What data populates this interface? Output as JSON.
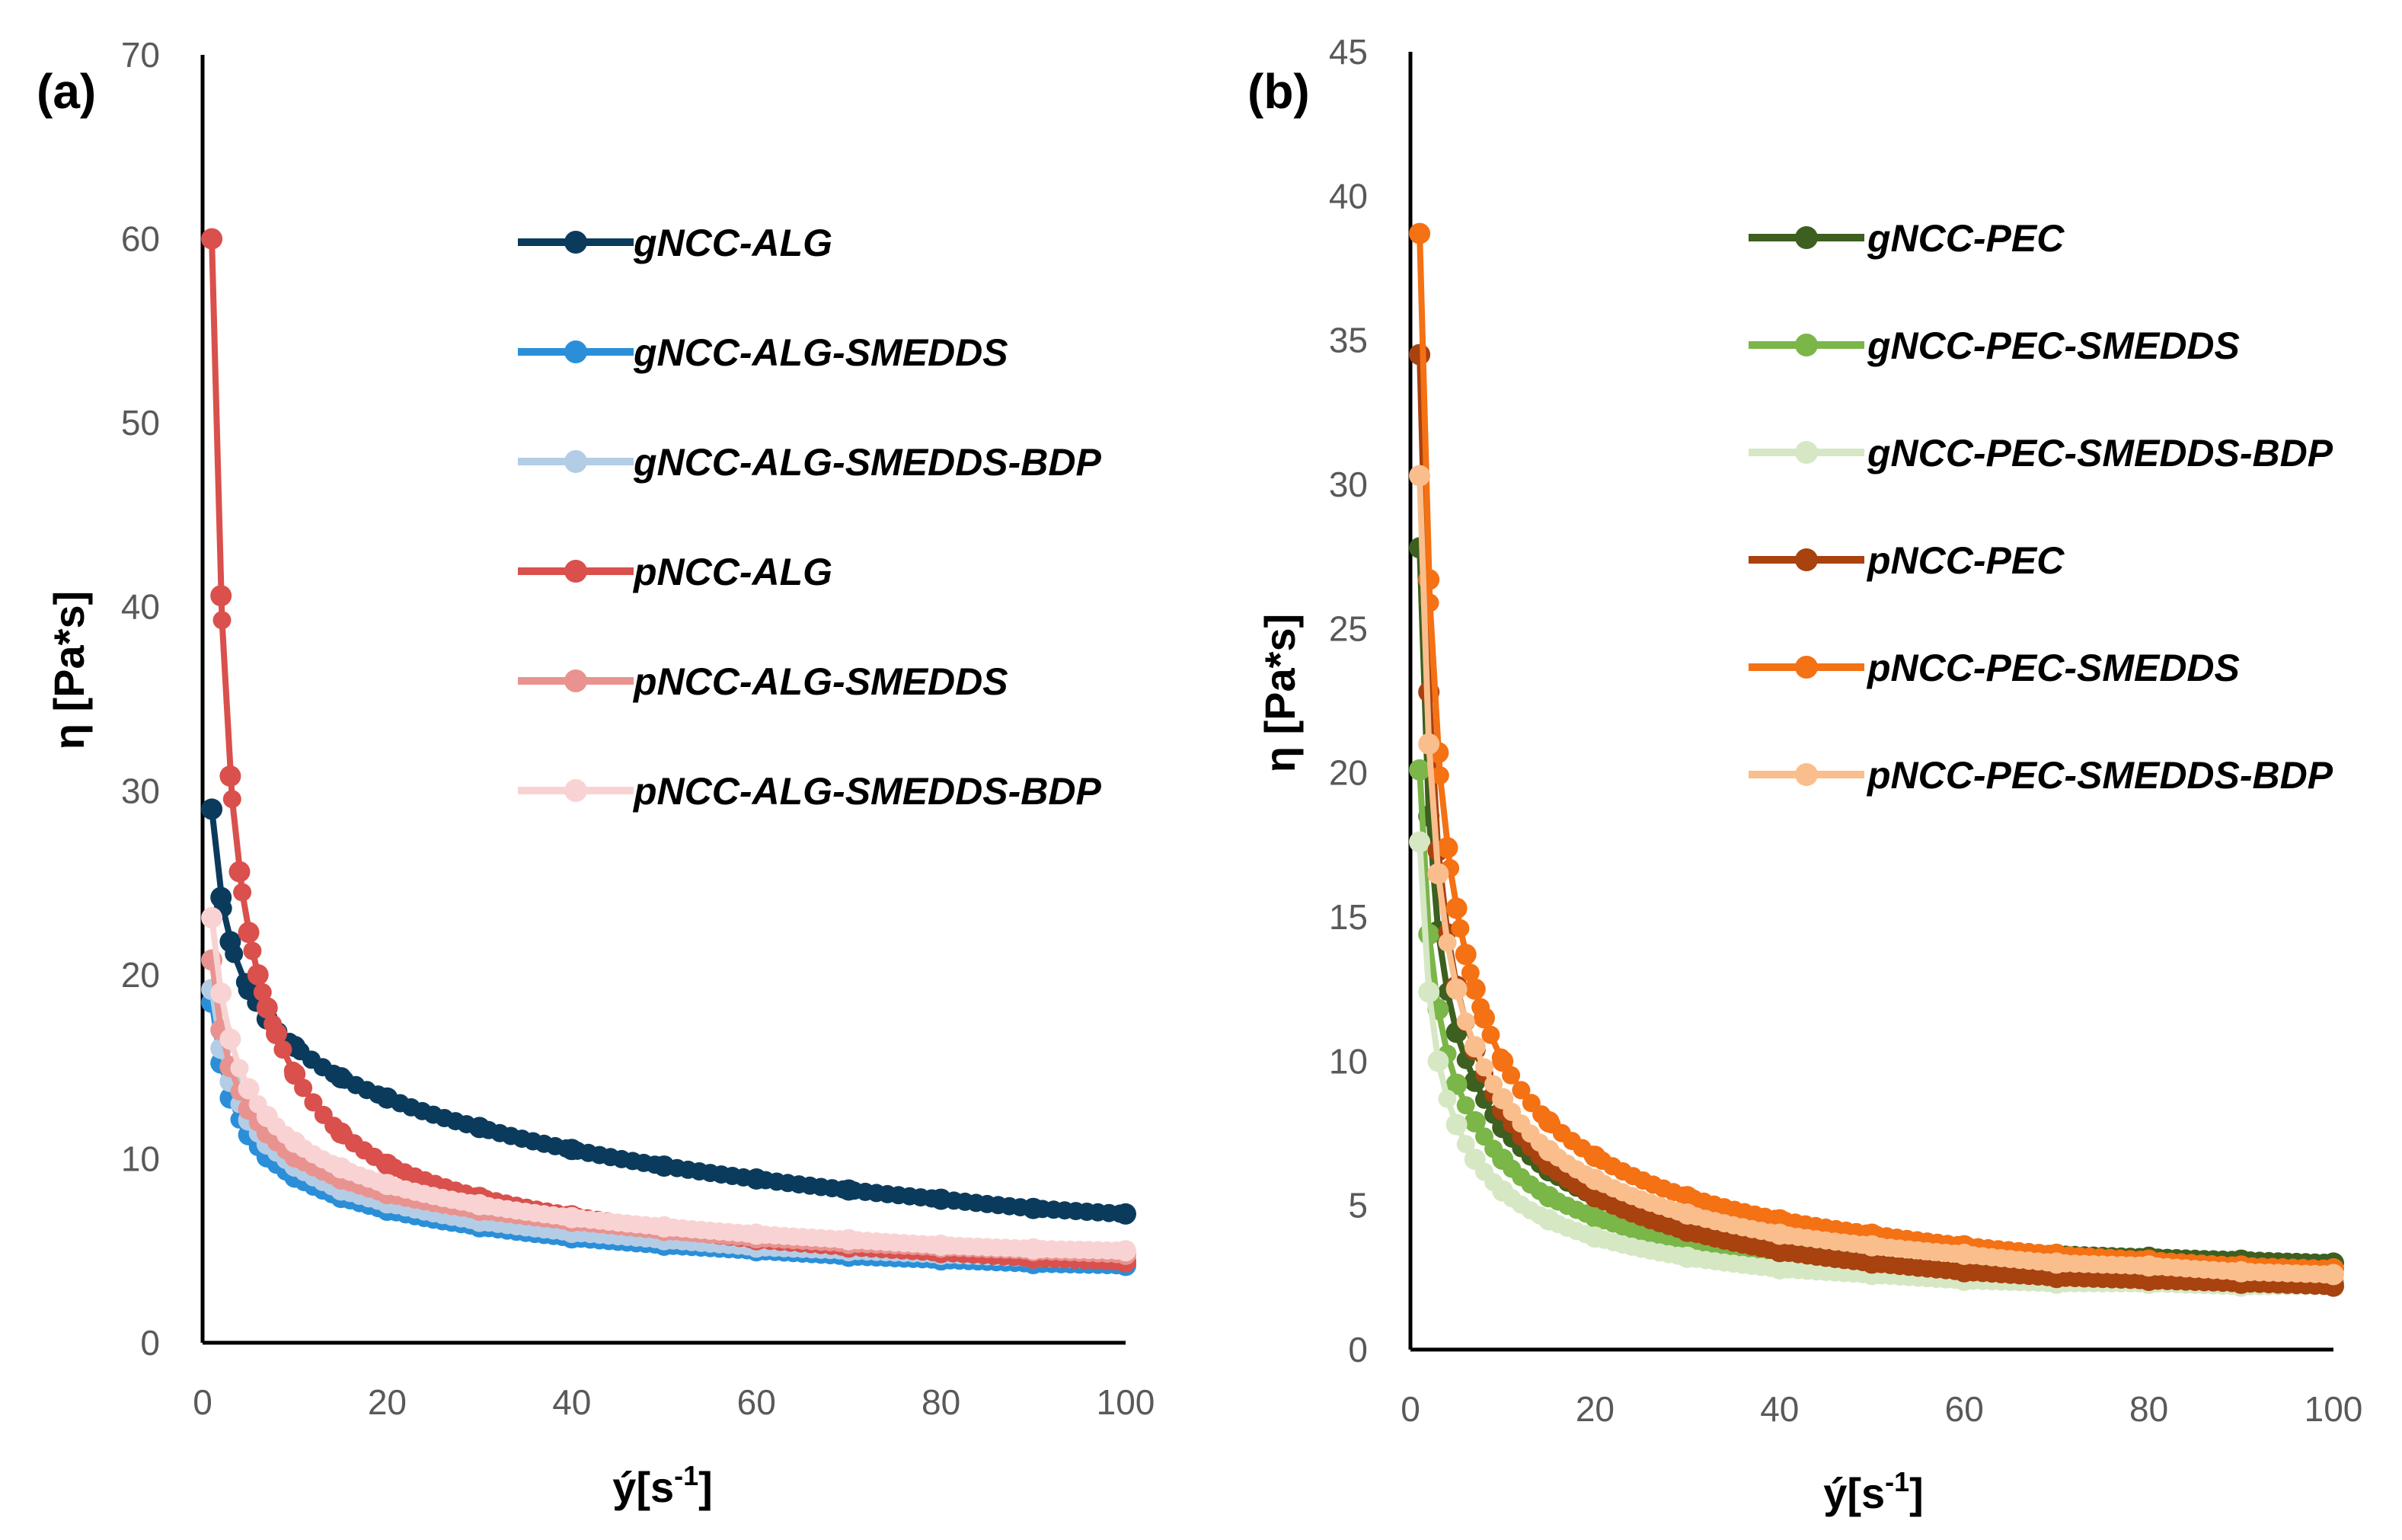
{
  "chart_data": [
    {
      "panel": "(a)",
      "type": "line",
      "xlabel": "ý[s",
      "xlabel_sup": "-1",
      "xlabel_end": "]",
      "ylabel": "η [Pa*s]",
      "xlim": [
        0,
        100
      ],
      "ylim": [
        0,
        70
      ],
      "xticks": [
        "0",
        "20",
        "40",
        "60",
        "80",
        "100"
      ],
      "yticks": [
        "0",
        "10",
        "20",
        "30",
        "40",
        "50",
        "60",
        "70"
      ],
      "grid": false,
      "legend_position": "top-right",
      "series": [
        {
          "name": "gNCC-ALG",
          "color": "#0b3b5c",
          "n": 1.2,
          "x": [
            1,
            2,
            3,
            5,
            7,
            10,
            15,
            20,
            30,
            40,
            50,
            60,
            70,
            80,
            90,
            100
          ],
          "values": [
            29,
            24.2,
            21.8,
            19.2,
            17.6,
            16.1,
            14.4,
            13.3,
            11.7,
            10.5,
            9.6,
            8.9,
            8.3,
            7.8,
            7.3,
            7.0
          ]
        },
        {
          "name": "gNCC-ALG-SMEDDS",
          "color": "#2a8fd8",
          "n": 1.0,
          "x": [
            1,
            2,
            3,
            5,
            7,
            10,
            15,
            20,
            30,
            40,
            50,
            60,
            70,
            80,
            90,
            100
          ],
          "values": [
            18.5,
            15.2,
            13.3,
            11.3,
            10.1,
            9.0,
            7.9,
            7.2,
            6.3,
            5.7,
            5.3,
            5.0,
            4.7,
            4.5,
            4.3,
            4.2
          ]
        },
        {
          "name": "gNCC-ALG-SMEDDS-BDP",
          "color": "#b4cde6",
          "n": 1.0,
          "x": [
            1,
            2,
            3,
            5,
            7,
            10,
            15,
            20,
            30,
            40,
            50,
            60,
            70,
            80,
            90,
            100
          ],
          "values": [
            19.2,
            16.0,
            14.2,
            12.1,
            10.8,
            9.6,
            8.3,
            7.6,
            6.6,
            6.0,
            5.6,
            5.2,
            5.0,
            4.8,
            4.6,
            4.5
          ]
        },
        {
          "name": "pNCC-ALG",
          "color": "#d9504c",
          "n": 1.1,
          "x": [
            1,
            2,
            3,
            4,
            5,
            6,
            7,
            8,
            10,
            15,
            20,
            30,
            40,
            50,
            60,
            70,
            80,
            90,
            100
          ],
          "values": [
            60,
            40.6,
            30.8,
            25.6,
            22.3,
            20.0,
            18.2,
            16.8,
            14.6,
            11.4,
            9.7,
            7.9,
            6.9,
            6.2,
            5.6,
            5.2,
            4.9,
            4.6,
            4.4
          ]
        },
        {
          "name": "pNCC-ALG-SMEDDS",
          "color": "#e8938f",
          "n": 1.0,
          "x": [
            1,
            2,
            3,
            5,
            7,
            10,
            15,
            20,
            30,
            40,
            50,
            60,
            70,
            80,
            90,
            100
          ],
          "values": [
            20.8,
            17.0,
            15.0,
            12.7,
            11.4,
            10.1,
            8.9,
            8.1,
            7.2,
            6.6,
            6.1,
            5.7,
            5.4,
            5.2,
            5.0,
            4.8
          ]
        },
        {
          "name": "pNCC-ALG-SMEDDS-BDP",
          "color": "#f9d3d3",
          "n": 1.0,
          "x": [
            1,
            2,
            3,
            5,
            7,
            10,
            15,
            20,
            30,
            40,
            50,
            60,
            70,
            80,
            90,
            100
          ],
          "values": [
            23.1,
            19.0,
            16.5,
            13.8,
            12.3,
            10.9,
            9.5,
            8.6,
            7.5,
            6.8,
            6.3,
            5.9,
            5.6,
            5.3,
            5.1,
            5.0
          ]
        }
      ]
    },
    {
      "panel": "(b)",
      "type": "line",
      "xlabel": "ý[s",
      "xlabel_sup": "-1",
      "xlabel_end": "]",
      "ylabel": "η [Pa*s]",
      "xlim": [
        0,
        100
      ],
      "ylim": [
        0,
        45
      ],
      "xticks": [
        "0",
        "20",
        "40",
        "60",
        "80",
        "100"
      ],
      "yticks": [
        "0",
        "5",
        "10",
        "15",
        "20",
        "25",
        "30",
        "35",
        "40",
        "45"
      ],
      "grid": false,
      "legend_position": "top-right",
      "series": [
        {
          "name": "gNCC-PEC",
          "color": "#3d5f1f",
          "n": 1.0,
          "x": [
            1,
            2,
            3,
            5,
            7,
            10,
            15,
            20,
            30,
            40,
            50,
            60,
            70,
            80,
            90,
            100
          ],
          "values": [
            27.8,
            18.5,
            14.5,
            11.0,
            9.3,
            7.7,
            6.2,
            5.3,
            4.4,
            3.9,
            3.6,
            3.4,
            3.3,
            3.2,
            3.1,
            3.0
          ]
        },
        {
          "name": "gNCC-PEC-SMEDDS",
          "color": "#7ab648",
          "n": 1.0,
          "x": [
            1,
            2,
            3,
            5,
            7,
            10,
            15,
            20,
            30,
            40,
            50,
            60,
            70,
            80,
            90,
            100
          ],
          "values": [
            20.1,
            14.4,
            11.8,
            9.2,
            7.9,
            6.6,
            5.3,
            4.6,
            3.7,
            3.2,
            2.9,
            2.7,
            2.6,
            2.5,
            2.4,
            2.3
          ]
        },
        {
          "name": "gNCC-PEC-SMEDDS-BDP",
          "color": "#d6e7c4",
          "n": 1.0,
          "x": [
            1,
            2,
            3,
            5,
            7,
            10,
            15,
            20,
            30,
            40,
            50,
            60,
            70,
            80,
            90,
            100
          ],
          "values": [
            17.6,
            12.4,
            10.0,
            7.8,
            6.6,
            5.5,
            4.5,
            3.9,
            3.2,
            2.8,
            2.6,
            2.4,
            2.3,
            2.3,
            2.2,
            2.2
          ]
        },
        {
          "name": "pNCC-PEC",
          "color": "#a8420f",
          "n": 1.0,
          "x": [
            1,
            2,
            3,
            5,
            7,
            10,
            15,
            20,
            30,
            40,
            50,
            60,
            70,
            80,
            90,
            100
          ],
          "values": [
            34.5,
            22.8,
            17.3,
            12.6,
            10.4,
            8.3,
            6.4,
            5.3,
            4.1,
            3.4,
            3.0,
            2.7,
            2.5,
            2.4,
            2.3,
            2.2
          ]
        },
        {
          "name": "pNCC-PEC-SMEDDS",
          "color": "#f47114",
          "n": 1.1,
          "x": [
            1,
            2,
            3,
            4,
            5,
            6,
            7,
            8,
            10,
            15,
            20,
            30,
            40,
            50,
            60,
            70,
            80,
            90,
            100
          ],
          "values": [
            38.7,
            26.7,
            20.7,
            17.4,
            15.3,
            13.7,
            12.5,
            11.5,
            10.0,
            7.9,
            6.7,
            5.3,
            4.5,
            4.0,
            3.6,
            3.3,
            3.1,
            2.9,
            2.8
          ]
        },
        {
          "name": "pNCC-PEC-SMEDDS-BDP",
          "color": "#f9be8c",
          "n": 1.0,
          "x": [
            1,
            2,
            3,
            5,
            7,
            10,
            15,
            20,
            30,
            40,
            50,
            60,
            70,
            80,
            90,
            100
          ],
          "values": [
            30.3,
            21.0,
            16.5,
            12.5,
            10.5,
            8.7,
            6.9,
            5.9,
            4.7,
            4.0,
            3.6,
            3.3,
            3.0,
            2.9,
            2.7,
            2.6
          ]
        }
      ]
    }
  ]
}
